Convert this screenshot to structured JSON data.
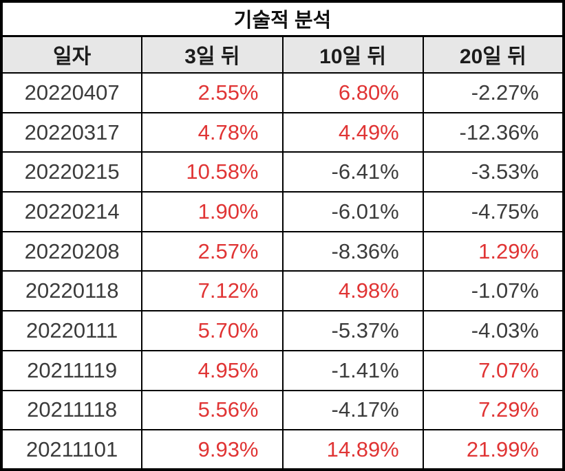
{
  "chart_data": {
    "type": "table",
    "title": "기술적 분석",
    "columns": [
      "일자",
      "3일 뒤",
      "10일 뒤",
      "20일 뒤"
    ],
    "rows": [
      [
        "20220407",
        "2.55%",
        "6.80%",
        "-2.27%"
      ],
      [
        "20220317",
        "4.78%",
        "4.49%",
        "-12.36%"
      ],
      [
        "20220215",
        "10.58%",
        "-6.41%",
        "-3.53%"
      ],
      [
        "20220214",
        "1.90%",
        "-6.01%",
        "-4.75%"
      ],
      [
        "20220208",
        "2.57%",
        "-8.36%",
        "1.29%"
      ],
      [
        "20220118",
        "7.12%",
        "4.98%",
        "-1.07%"
      ],
      [
        "20220111",
        "5.70%",
        "-5.37%",
        "-4.03%"
      ],
      [
        "20211119",
        "4.95%",
        "-1.41%",
        "7.07%"
      ],
      [
        "20211118",
        "5.56%",
        "-4.17%",
        "7.29%"
      ],
      [
        "20211101",
        "9.93%",
        "14.89%",
        "21.99%"
      ]
    ],
    "value_color_rule": "positive values rendered red, negative values rendered dark gray"
  },
  "colors": {
    "positive_value": "#e03434",
    "negative_value": "#3b3b3b",
    "header_background": "#e7e7e7",
    "border": "#000000",
    "header_text": "#1c1c1c",
    "title_text": "#111111"
  }
}
